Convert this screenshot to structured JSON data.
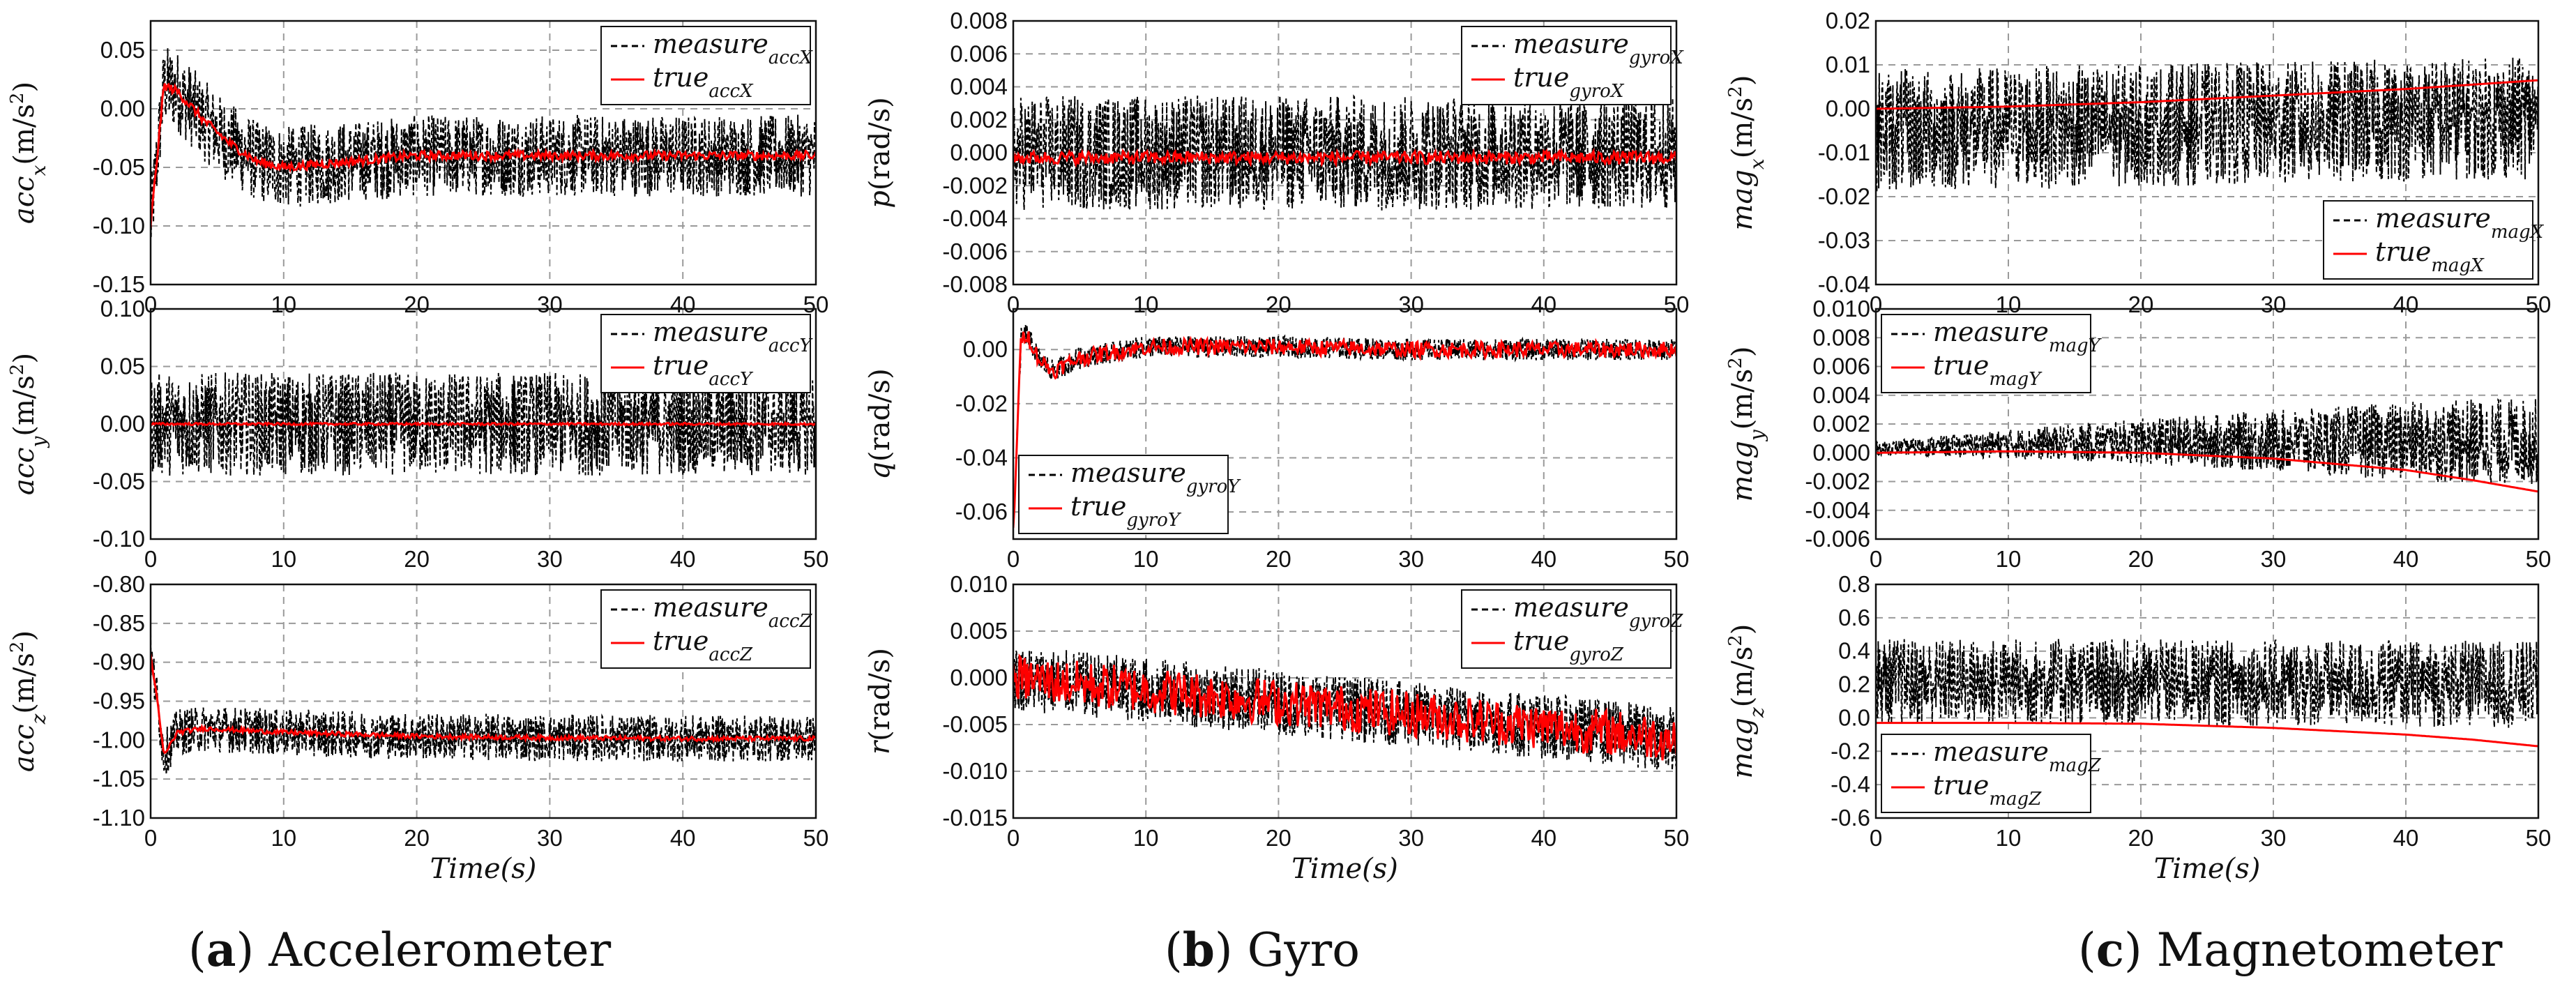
{
  "captions": [
    {
      "letter": "a",
      "text": "Accelerometer"
    },
    {
      "letter": "b",
      "text": "Gyro"
    },
    {
      "letter": "c",
      "text": "Magnetometer"
    }
  ],
  "colors": {
    "measure": "#000000",
    "true": "#ff0000",
    "grid": "#9a9a9a"
  },
  "chart_data": [
    {
      "id": "accx",
      "type": "line",
      "ylabel": "acc_x(m/s^2)",
      "yvar": "acc",
      "ysub": "x",
      "yunit": "(m/s",
      "xlabel": "",
      "xlim": [
        0,
        50
      ],
      "ylim": [
        -0.15,
        0.075
      ],
      "xticks": [
        "0",
        "10",
        "20",
        "30",
        "40",
        "50"
      ],
      "yticks": [
        "-0.15",
        "-0.10",
        "-0.05",
        "0.00",
        "0.05"
      ],
      "legend": "top-right",
      "series": [
        {
          "name": "measure_accX",
          "label": "measure",
          "sub": "accX",
          "style": "dashed",
          "x": [
            0,
            1,
            2,
            4,
            6,
            8,
            10,
            15,
            20,
            25,
            30,
            35,
            40,
            45,
            50
          ],
          "values": [
            -0.1,
            0.02,
            0.015,
            -0.01,
            -0.03,
            -0.045,
            -0.05,
            -0.045,
            -0.04,
            -0.04,
            -0.04,
            -0.04,
            -0.04,
            -0.04,
            -0.04
          ],
          "noise": 0.035
        },
        {
          "name": "true_accX",
          "label": "true",
          "sub": "accX",
          "style": "solid",
          "x": [
            0,
            1,
            2,
            4,
            6,
            8,
            10,
            15,
            20,
            25,
            30,
            35,
            40,
            45,
            50
          ],
          "values": [
            -0.1,
            0.02,
            0.015,
            -0.01,
            -0.03,
            -0.045,
            -0.05,
            -0.045,
            -0.04,
            -0.04,
            -0.04,
            -0.04,
            -0.04,
            -0.04,
            -0.04
          ],
          "noise": 0.004
        }
      ]
    },
    {
      "id": "accy",
      "type": "line",
      "ylabel": "acc_y(m/s^2)",
      "yvar": "acc",
      "ysub": "y",
      "yunit": "(m/s",
      "xlabel": "",
      "xlim": [
        0,
        50
      ],
      "ylim": [
        -0.1,
        0.1
      ],
      "xticks": [
        "0",
        "10",
        "20",
        "30",
        "40",
        "50"
      ],
      "yticks": [
        "-0.10",
        "-0.05",
        "0.00",
        "0.05",
        "0.10"
      ],
      "legend": "top-right",
      "series": [
        {
          "name": "measure_accY",
          "label": "measure",
          "sub": "accY",
          "style": "dashed",
          "x": [
            0,
            50
          ],
          "values": [
            0,
            0
          ],
          "noise": 0.045
        },
        {
          "name": "true_accY",
          "label": "true",
          "sub": "accY",
          "style": "solid",
          "x": [
            0,
            50
          ],
          "values": [
            0,
            0
          ],
          "noise": 0.001
        }
      ]
    },
    {
      "id": "accz",
      "type": "line",
      "ylabel": "acc_z(m/s^2)",
      "yvar": "acc",
      "ysub": "z",
      "yunit": "(m/s",
      "xlabel": "Time(s)",
      "xlim": [
        0,
        50
      ],
      "ylim": [
        -1.1,
        -0.8
      ],
      "xticks": [
        "0",
        "10",
        "20",
        "30",
        "40",
        "50"
      ],
      "yticks": [
        "-1.10",
        "-1.05",
        "-1.00",
        "-0.95",
        "-0.90",
        "-0.85",
        "-0.80"
      ],
      "legend": "top-right",
      "series": [
        {
          "name": "measure_accZ",
          "label": "measure",
          "sub": "accZ",
          "style": "dashed",
          "x": [
            0,
            0.5,
            1,
            2,
            4,
            10,
            20,
            30,
            40,
            50
          ],
          "values": [
            -0.89,
            -0.95,
            -1.02,
            -0.99,
            -0.985,
            -0.99,
            -0.995,
            -0.997,
            -0.998,
            -0.998
          ],
          "noise": 0.03
        },
        {
          "name": "true_accZ",
          "label": "true",
          "sub": "accZ",
          "style": "solid",
          "x": [
            0,
            0.5,
            1,
            2,
            4,
            10,
            20,
            30,
            40,
            50
          ],
          "values": [
            -0.89,
            -0.95,
            -1.02,
            -0.99,
            -0.985,
            -0.99,
            -0.995,
            -0.997,
            -0.998,
            -0.998
          ],
          "noise": 0.003
        }
      ]
    },
    {
      "id": "gyrop",
      "type": "line",
      "ylabel": "p(rad/s)",
      "yvar": "p",
      "ysub": "",
      "yunit": "(rad/s)",
      "xlabel": "",
      "xlim": [
        0,
        50
      ],
      "ylim": [
        -0.008,
        0.008
      ],
      "xticks": [
        "0",
        "10",
        "20",
        "30",
        "40",
        "50"
      ],
      "yticks": [
        "-0.008",
        "-0.006",
        "-0.004",
        "-0.002",
        "0.000",
        "0.002",
        "0.004",
        "0.006",
        "0.008"
      ],
      "legend": "top-right",
      "series": [
        {
          "name": "measure_gyroX",
          "label": "measure",
          "sub": "gyroX",
          "style": "dashed",
          "x": [
            0,
            50
          ],
          "values": [
            0,
            0
          ],
          "noise": 0.0035
        },
        {
          "name": "true_gyroX",
          "label": "true",
          "sub": "gyroX",
          "style": "solid",
          "x": [
            0,
            50
          ],
          "values": [
            -0.0003,
            -0.0003
          ],
          "noise": 0.0004
        }
      ]
    },
    {
      "id": "gyroq",
      "type": "line",
      "ylabel": "q(rad/s)",
      "yvar": "q",
      "ysub": "",
      "yunit": "(rad/s)",
      "xlabel": "",
      "xlim": [
        0,
        50
      ],
      "ylim": [
        -0.07,
        0.015
      ],
      "xticks": [
        "0",
        "10",
        "20",
        "30",
        "40",
        "50"
      ],
      "yticks": [
        "-0.06",
        "-0.04",
        "-0.02",
        "0.00"
      ],
      "legend": "bottom-left",
      "series": [
        {
          "name": "measure_gyroY",
          "label": "measure",
          "sub": "gyroY",
          "style": "dashed",
          "x": [
            0,
            0.3,
            0.6,
            1,
            2,
            3,
            5,
            10,
            20,
            30,
            40,
            50
          ],
          "values": [
            -0.068,
            -0.03,
            0.004,
            0.006,
            -0.004,
            -0.008,
            -0.003,
            0.001,
            0.001,
            0.0,
            0.0,
            0.0
          ],
          "noise": 0.004
        },
        {
          "name": "true_gyroY",
          "label": "true",
          "sub": "gyroY",
          "style": "solid",
          "x": [
            0,
            0.3,
            0.6,
            1,
            2,
            3,
            5,
            10,
            20,
            30,
            40,
            50
          ],
          "values": [
            -0.068,
            -0.03,
            0.004,
            0.006,
            -0.004,
            -0.008,
            -0.003,
            0.001,
            0.001,
            0.0,
            0.0,
            0.0
          ],
          "noise": 0.003
        }
      ]
    },
    {
      "id": "gyror",
      "type": "line",
      "ylabel": "r(rad/s)",
      "yvar": "r",
      "ysub": "",
      "yunit": "(rad/s)",
      "xlabel": "Time(s)",
      "xlim": [
        0,
        50
      ],
      "ylim": [
        -0.015,
        0.01
      ],
      "xticks": [
        "0",
        "10",
        "20",
        "30",
        "40",
        "50"
      ],
      "yticks": [
        "-0.015",
        "-0.010",
        "-0.005",
        "0.000",
        "0.005",
        "0.010"
      ],
      "legend": "top-right",
      "series": [
        {
          "name": "measure_gyroZ",
          "label": "measure",
          "sub": "gyroZ",
          "style": "dashed",
          "x": [
            0,
            50
          ],
          "values": [
            0.0,
            -0.0065
          ],
          "noise": 0.0035
        },
        {
          "name": "true_gyroZ",
          "label": "true",
          "sub": "gyroZ",
          "style": "solid",
          "x": [
            0,
            50
          ],
          "values": [
            0.0,
            -0.0065
          ],
          "noise": 0.0025
        }
      ]
    },
    {
      "id": "magx",
      "type": "line",
      "ylabel": "mag_x(m/s^2)",
      "yvar": "mag",
      "ysub": "x",
      "yunit": "(m/s",
      "xlabel": "",
      "xlim": [
        0,
        50
      ],
      "ylim": [
        -0.04,
        0.02
      ],
      "xticks": [
        "0",
        "10",
        "20",
        "30",
        "40",
        "50"
      ],
      "yticks": [
        "-0.04",
        "-0.03",
        "-0.02",
        "-0.01",
        "0.00",
        "0.01",
        "0.02"
      ],
      "legend": "bottom-right",
      "series": [
        {
          "name": "measure_magX",
          "label": "measure",
          "sub": "magX",
          "style": "dashed",
          "x": [
            0,
            50
          ],
          "values": [
            -0.005,
            -0.002
          ],
          "noise": 0.014
        },
        {
          "name": "true_magX",
          "label": "true",
          "sub": "magX",
          "style": "solid",
          "x": [
            0,
            10,
            20,
            30,
            40,
            50
          ],
          "values": [
            0.0,
            0.0005,
            0.0015,
            0.003,
            0.0045,
            0.0065
          ],
          "noise": 0
        }
      ]
    },
    {
      "id": "magy",
      "type": "line",
      "ylabel": "mag_y(m/s^2)",
      "yvar": "mag",
      "ysub": "y",
      "yunit": "(m/s",
      "xlabel": "",
      "xlim": [
        0,
        50
      ],
      "ylim": [
        -0.006,
        0.01
      ],
      "xticks": [
        "0",
        "10",
        "20",
        "30",
        "40",
        "50"
      ],
      "yticks": [
        "-0.006",
        "-0.004",
        "-0.002",
        "0.000",
        "0.002",
        "0.004",
        "0.006",
        "0.008",
        "0.010"
      ],
      "legend": "top-left",
      "series": [
        {
          "name": "measure_magY",
          "label": "measure",
          "sub": "magY",
          "style": "dashed",
          "x": [
            0,
            10,
            20,
            30,
            40,
            50
          ],
          "values": [
            0.0003,
            0.0006,
            0.0008,
            0.0008,
            0.0008,
            0.0008
          ],
          "noise": 0.003,
          "noiseGrow": true
        },
        {
          "name": "true_magY",
          "label": "true",
          "sub": "magY",
          "style": "solid",
          "x": [
            0,
            10,
            20,
            30,
            35,
            40,
            45,
            50
          ],
          "values": [
            0.0,
            0.0001,
            0.0,
            -0.0004,
            -0.0008,
            -0.0012,
            -0.0019,
            -0.0027
          ],
          "noise": 0
        }
      ]
    },
    {
      "id": "magz",
      "type": "line",
      "ylabel": "mag_z(m/s^2)",
      "yvar": "mag",
      "ysub": "z",
      "yunit": "(m/s",
      "xlabel": "Time(s)",
      "xlim": [
        0,
        50
      ],
      "ylim": [
        -0.6,
        0.8
      ],
      "xticks": [
        "0",
        "10",
        "20",
        "30",
        "40",
        "50"
      ],
      "yticks": [
        "-0.6",
        "-0.4",
        "-0.2",
        "0.0",
        "0.2",
        "0.4",
        "0.6",
        "0.8"
      ],
      "legend": "bottom-left",
      "series": [
        {
          "name": "measure_magZ",
          "label": "measure",
          "sub": "magZ",
          "style": "dashed",
          "x": [
            0,
            50
          ],
          "values": [
            0.22,
            0.2
          ],
          "noise": 0.26
        },
        {
          "name": "true_magZ",
          "label": "true",
          "sub": "magZ",
          "style": "solid",
          "x": [
            0,
            10,
            20,
            30,
            40,
            45,
            50
          ],
          "values": [
            -0.03,
            -0.03,
            -0.035,
            -0.06,
            -0.1,
            -0.13,
            -0.17
          ],
          "noise": 0
        }
      ]
    }
  ]
}
